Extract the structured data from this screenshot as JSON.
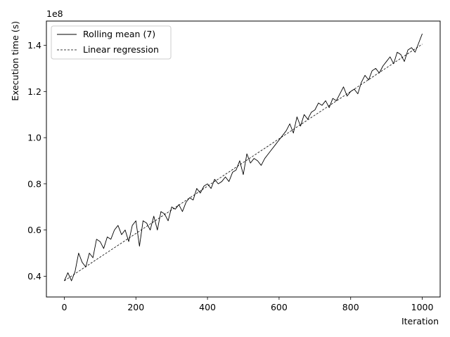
{
  "chart_data": {
    "type": "line",
    "title": "",
    "xlabel": "Iteration",
    "ylabel": "Execution time (s)",
    "y_offset_text": "1e8",
    "xlim": [
      -50,
      1050
    ],
    "ylim": [
      0.31,
      1.505
    ],
    "y_multiplier": 100000000,
    "xticks": [
      0,
      200,
      400,
      600,
      800,
      1000
    ],
    "xtick_labels": [
      "0",
      "200",
      "400",
      "600",
      "800",
      "1000"
    ],
    "yticks": [
      0.4,
      0.6,
      0.8,
      1.0,
      1.2,
      1.4
    ],
    "ytick_labels": [
      "0.4",
      "0.6",
      "0.8",
      "1.0",
      "1.2",
      "1.4"
    ],
    "grid": false,
    "legend_position": "top-left",
    "series": [
      {
        "name": "Rolling mean (7)",
        "style": "solid",
        "color": "#000000",
        "x": [
          0,
          10,
          20,
          30,
          40,
          50,
          60,
          70,
          80,
          90,
          100,
          110,
          120,
          130,
          140,
          150,
          160,
          170,
          180,
          190,
          200,
          210,
          220,
          230,
          240,
          250,
          260,
          270,
          280,
          290,
          300,
          310,
          320,
          330,
          340,
          350,
          360,
          370,
          380,
          390,
          400,
          410,
          420,
          430,
          440,
          450,
          460,
          470,
          480,
          490,
          500,
          510,
          520,
          530,
          540,
          550,
          560,
          570,
          580,
          590,
          600,
          610,
          620,
          630,
          640,
          650,
          660,
          670,
          680,
          690,
          700,
          710,
          720,
          730,
          740,
          750,
          760,
          770,
          780,
          790,
          800,
          810,
          820,
          830,
          840,
          850,
          860,
          870,
          880,
          890,
          900,
          910,
          920,
          930,
          940,
          950,
          960,
          970,
          980,
          990,
          1000
        ],
        "values": [
          0.38,
          0.415,
          0.38,
          0.42,
          0.5,
          0.46,
          0.44,
          0.5,
          0.48,
          0.56,
          0.55,
          0.52,
          0.57,
          0.56,
          0.6,
          0.62,
          0.58,
          0.6,
          0.55,
          0.62,
          0.64,
          0.53,
          0.64,
          0.63,
          0.6,
          0.66,
          0.6,
          0.68,
          0.67,
          0.64,
          0.7,
          0.69,
          0.71,
          0.68,
          0.72,
          0.74,
          0.73,
          0.78,
          0.76,
          0.79,
          0.8,
          0.78,
          0.82,
          0.8,
          0.81,
          0.83,
          0.81,
          0.85,
          0.86,
          0.9,
          0.84,
          0.93,
          0.89,
          0.91,
          0.9,
          0.88,
          0.91,
          0.93,
          0.95,
          0.97,
          0.99,
          1.01,
          1.03,
          1.06,
          1.02,
          1.09,
          1.05,
          1.1,
          1.08,
          1.11,
          1.12,
          1.15,
          1.14,
          1.16,
          1.13,
          1.17,
          1.16,
          1.19,
          1.22,
          1.18,
          1.2,
          1.21,
          1.19,
          1.24,
          1.27,
          1.25,
          1.29,
          1.3,
          1.28,
          1.31,
          1.33,
          1.35,
          1.32,
          1.37,
          1.36,
          1.33,
          1.38,
          1.39,
          1.37,
          1.41,
          1.45
        ]
      },
      {
        "name": "Linear regression",
        "style": "dashed",
        "color": "#000000",
        "x": [
          0,
          1000
        ],
        "values": [
          0.38,
          1.405
        ]
      }
    ]
  }
}
